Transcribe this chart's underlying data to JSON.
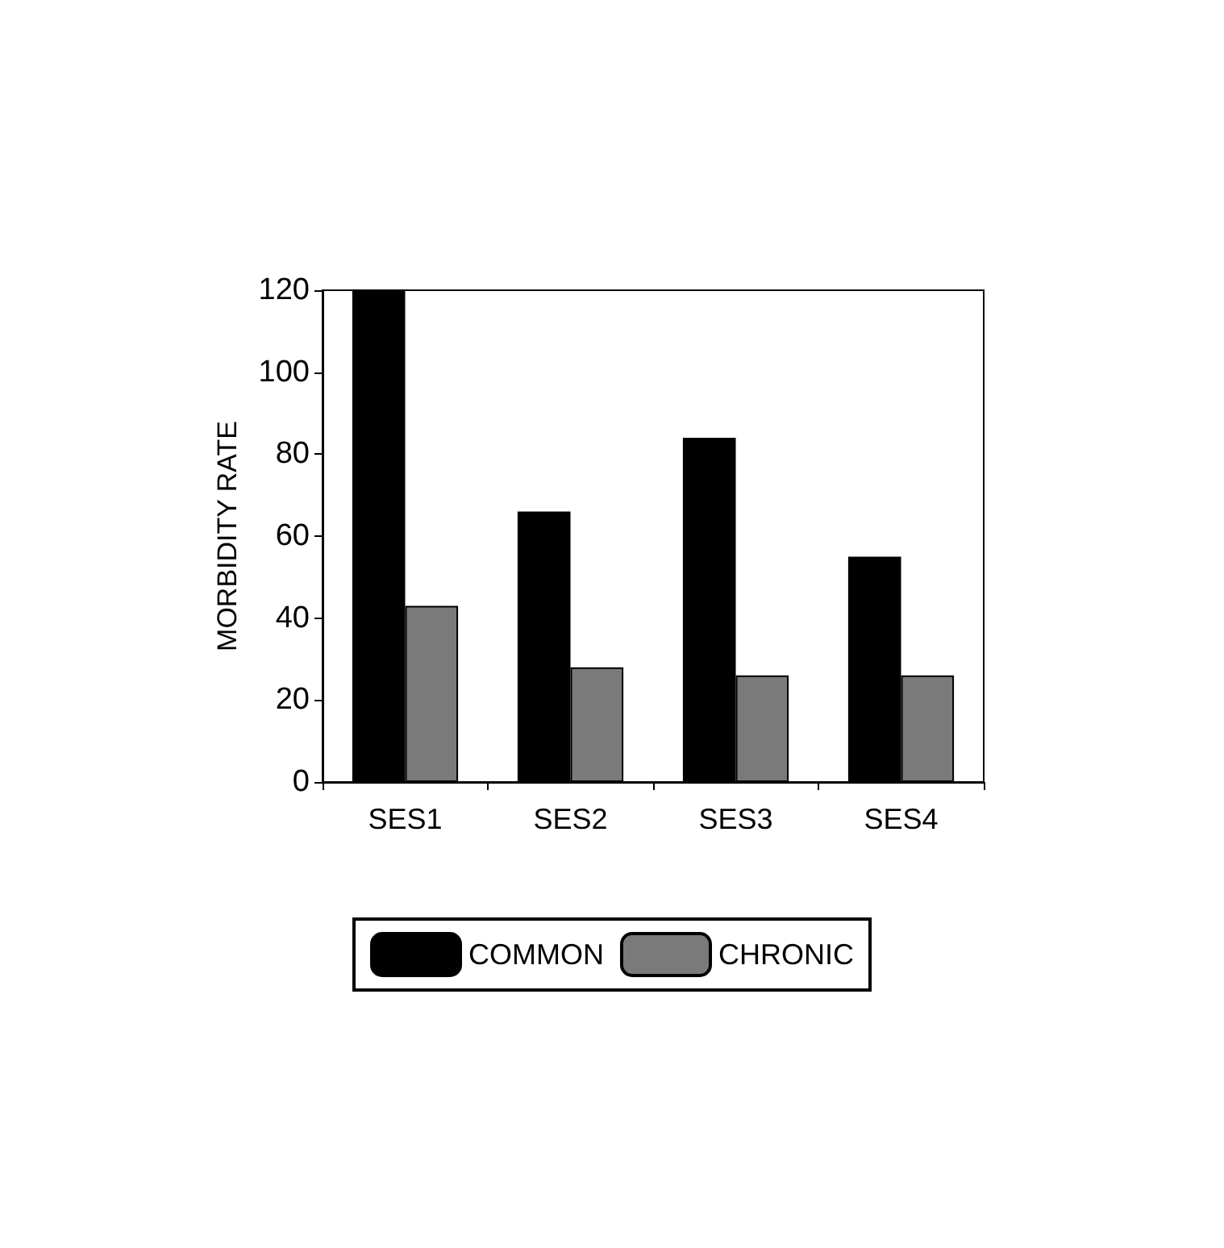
{
  "chart_data": {
    "type": "bar",
    "ylabel": "MORBIDITY RATE",
    "categories": [
      "SES1",
      "SES2",
      "SES3",
      "SES4"
    ],
    "series": [
      {
        "name": "COMMON",
        "color": "#000000",
        "values": [
          120,
          66,
          84,
          55
        ]
      },
      {
        "name": "CHRONIC",
        "color": "#7a7a7a",
        "values": [
          43,
          28,
          26,
          26
        ]
      }
    ],
    "ylim": [
      0,
      120
    ],
    "yticks": [
      0,
      20,
      40,
      60,
      80,
      100,
      120
    ],
    "grid": false,
    "legend": "bottom"
  }
}
